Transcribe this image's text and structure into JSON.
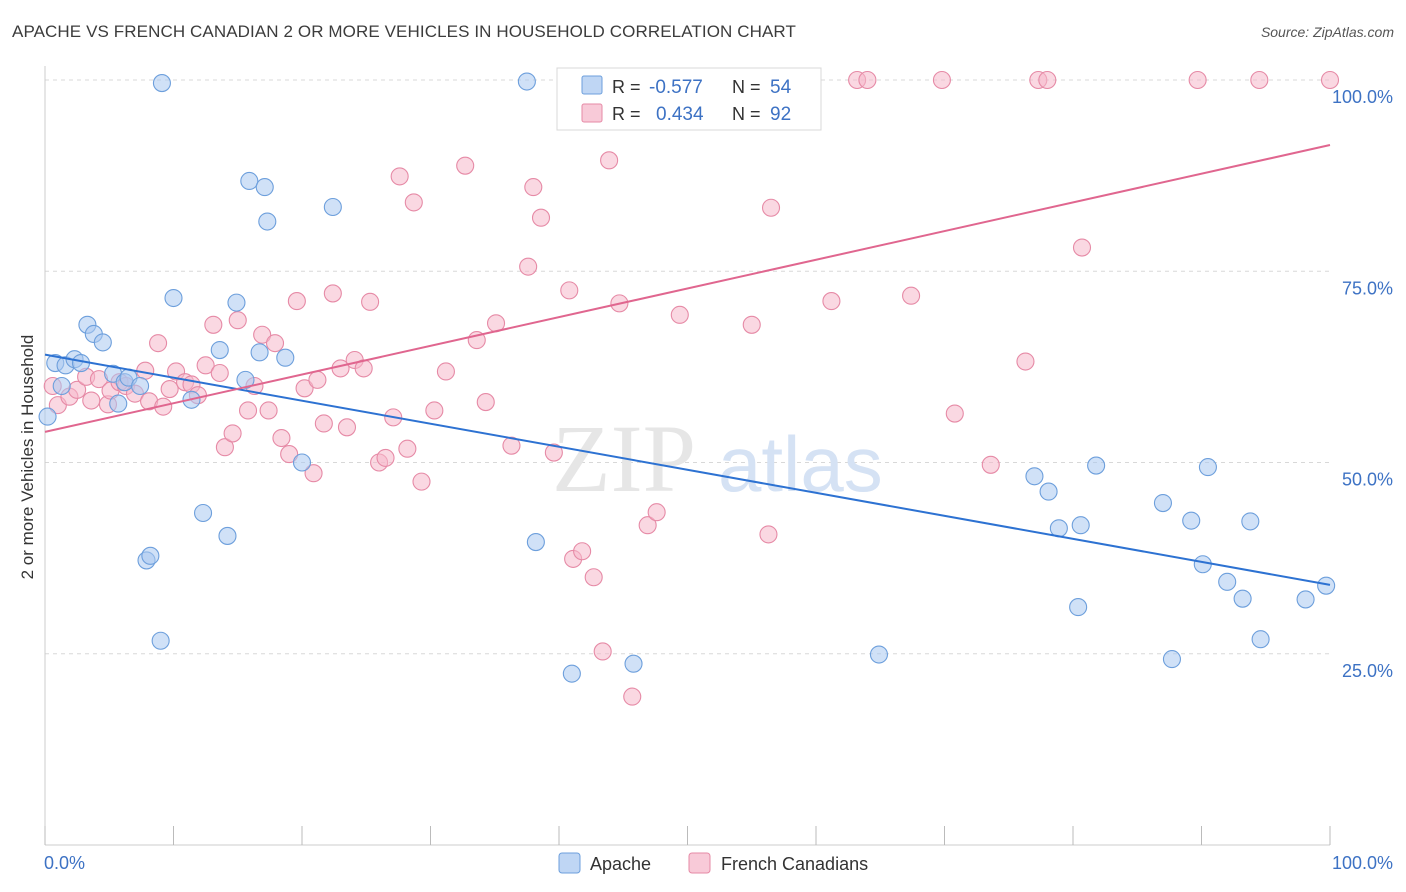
{
  "header": {
    "title": "APACHE VS FRENCH CANADIAN 2 OR MORE VEHICLES IN HOUSEHOLD CORRELATION CHART",
    "source": "Source: ZipAtlas.com"
  },
  "watermark": {
    "zip": "ZIP",
    "atlas": "atlas"
  },
  "legend_box": {
    "rows": [
      {
        "r_label": "R =",
        "r_value": "-0.577",
        "n_label": "N =",
        "n_value": "54",
        "color": "#a9c8f0"
      },
      {
        "r_label": "R =",
        "r_value": "0.434",
        "n_label": "N =",
        "n_value": "92",
        "color": "#f5b8cb"
      }
    ]
  },
  "bottom_legend": [
    {
      "label": "Apache",
      "color": "#a9c8f0"
    },
    {
      "label": "French Canadians",
      "color": "#f5b8cb"
    }
  ],
  "colors": {
    "apache_fill": "#a9c8f0",
    "apache_stroke": "#6d9fdc",
    "apache_line": "#2d72d2",
    "french_fill": "#f5b8cb",
    "french_stroke": "#e68aa6",
    "french_line": "#e0668f",
    "tick_label": "#3d72c4",
    "grid": "#d8d8d8"
  },
  "chart_data": {
    "type": "scatter",
    "title": "APACHE VS FRENCH CANADIAN 2 OR MORE VEHICLES IN HOUSEHOLD CORRELATION CHART",
    "xlabel": "",
    "ylabel": "2 or more Vehicles in Household",
    "xlim": [
      0,
      100
    ],
    "ylim": [
      0,
      100
    ],
    "x_tick_labels": [
      "0.0%",
      "100.0%"
    ],
    "y_ticks": [
      25,
      50,
      75,
      100
    ],
    "y_tick_labels": [
      "25.0%",
      "50.0%",
      "75.0%",
      "100.0%"
    ],
    "grid": true,
    "legend": "top-center",
    "series": [
      {
        "name": "Apache",
        "trend": {
          "x": [
            0,
            100
          ],
          "y": [
            64.1,
            34.0
          ]
        },
        "points": [
          [
            0.2,
            56.0
          ],
          [
            0.8,
            63.0
          ],
          [
            1.3,
            60.0
          ],
          [
            1.6,
            62.7
          ],
          [
            2.3,
            63.5
          ],
          [
            2.8,
            63.0
          ],
          [
            3.3,
            68.0
          ],
          [
            3.8,
            66.8
          ],
          [
            4.5,
            65.7
          ],
          [
            5.3,
            61.6
          ],
          [
            5.7,
            57.7
          ],
          [
            6.2,
            60.5
          ],
          [
            6.5,
            61.1
          ],
          [
            7.4,
            60.0
          ],
          [
            7.9,
            37.2
          ],
          [
            8.2,
            37.8
          ],
          [
            9.0,
            26.7
          ],
          [
            9.1,
            99.6
          ],
          [
            10.0,
            71.5
          ],
          [
            11.4,
            58.2
          ],
          [
            12.3,
            43.4
          ],
          [
            13.6,
            64.7
          ],
          [
            14.2,
            40.4
          ],
          [
            14.9,
            70.9
          ],
          [
            15.6,
            60.8
          ],
          [
            15.9,
            86.8
          ],
          [
            16.7,
            64.4
          ],
          [
            17.1,
            86.0
          ],
          [
            17.3,
            81.5
          ],
          [
            18.7,
            63.7
          ],
          [
            20.0,
            50.0
          ],
          [
            22.4,
            83.4
          ],
          [
            37.5,
            99.8
          ],
          [
            38.2,
            39.6
          ],
          [
            41.0,
            22.4
          ],
          [
            45.8,
            23.7
          ],
          [
            64.9,
            24.9
          ],
          [
            77.0,
            48.2
          ],
          [
            78.1,
            46.2
          ],
          [
            78.9,
            41.4
          ],
          [
            80.4,
            31.1
          ],
          [
            80.6,
            41.8
          ],
          [
            81.8,
            49.6
          ],
          [
            87.0,
            44.7
          ],
          [
            87.7,
            24.3
          ],
          [
            89.2,
            42.4
          ],
          [
            90.1,
            36.7
          ],
          [
            90.5,
            49.4
          ],
          [
            92.0,
            34.4
          ],
          [
            93.2,
            32.2
          ],
          [
            93.8,
            42.3
          ],
          [
            94.6,
            26.9
          ],
          [
            98.1,
            32.1
          ],
          [
            99.7,
            33.9
          ]
        ]
      },
      {
        "name": "French Canadians",
        "trend": {
          "x": [
            0,
            100
          ],
          "y": [
            54.0,
            91.5
          ]
        },
        "points": [
          [
            0.6,
            60.0
          ],
          [
            1.0,
            57.5
          ],
          [
            1.9,
            58.6
          ],
          [
            2.5,
            59.5
          ],
          [
            3.2,
            61.2
          ],
          [
            3.6,
            58.1
          ],
          [
            4.2,
            60.9
          ],
          [
            4.9,
            57.6
          ],
          [
            5.1,
            59.4
          ],
          [
            5.8,
            60.5
          ],
          [
            6.3,
            60.0
          ],
          [
            7.0,
            59.0
          ],
          [
            7.8,
            62.0
          ],
          [
            8.1,
            58.0
          ],
          [
            8.8,
            65.6
          ],
          [
            9.2,
            57.3
          ],
          [
            9.7,
            59.6
          ],
          [
            10.2,
            61.9
          ],
          [
            10.9,
            60.5
          ],
          [
            11.4,
            60.2
          ],
          [
            11.9,
            58.8
          ],
          [
            12.5,
            62.7
          ],
          [
            13.1,
            68.0
          ],
          [
            13.6,
            61.7
          ],
          [
            14.0,
            52.0
          ],
          [
            14.6,
            53.8
          ],
          [
            15.0,
            68.6
          ],
          [
            15.8,
            56.8
          ],
          [
            16.3,
            60.0
          ],
          [
            16.9,
            66.7
          ],
          [
            17.4,
            56.8
          ],
          [
            17.9,
            65.6
          ],
          [
            18.4,
            53.2
          ],
          [
            19.0,
            51.1
          ],
          [
            19.6,
            71.1
          ],
          [
            20.2,
            59.7
          ],
          [
            20.9,
            48.6
          ],
          [
            21.2,
            60.8
          ],
          [
            21.7,
            55.1
          ],
          [
            22.4,
            72.1
          ],
          [
            23.0,
            62.3
          ],
          [
            23.5,
            54.6
          ],
          [
            24.1,
            63.4
          ],
          [
            24.8,
            62.3
          ],
          [
            25.3,
            71.0
          ],
          [
            26.0,
            50.0
          ],
          [
            26.5,
            50.6
          ],
          [
            27.1,
            55.9
          ],
          [
            27.6,
            87.4
          ],
          [
            28.2,
            51.8
          ],
          [
            28.7,
            84.0
          ],
          [
            29.3,
            47.5
          ],
          [
            30.3,
            56.8
          ],
          [
            31.2,
            61.9
          ],
          [
            32.7,
            88.8
          ],
          [
            33.6,
            66.0
          ],
          [
            34.3,
            57.9
          ],
          [
            35.1,
            68.2
          ],
          [
            36.3,
            52.2
          ],
          [
            37.6,
            75.6
          ],
          [
            38.0,
            86.0
          ],
          [
            38.6,
            82.0
          ],
          [
            39.6,
            51.3
          ],
          [
            40.8,
            72.5
          ],
          [
            41.1,
            37.4
          ],
          [
            41.8,
            38.4
          ],
          [
            42.7,
            35.0
          ],
          [
            43.4,
            25.3
          ],
          [
            43.9,
            89.5
          ],
          [
            44.7,
            70.8
          ],
          [
            45.7,
            19.4
          ],
          [
            46.9,
            41.8
          ],
          [
            47.6,
            43.5
          ],
          [
            49.4,
            69.3
          ],
          [
            50.8,
            100.0
          ],
          [
            55.0,
            68.0
          ],
          [
            56.3,
            40.6
          ],
          [
            56.5,
            83.3
          ],
          [
            61.2,
            71.1
          ],
          [
            63.2,
            100.0
          ],
          [
            64.0,
            100.0
          ],
          [
            67.4,
            71.8
          ],
          [
            69.8,
            100.0
          ],
          [
            70.8,
            56.4
          ],
          [
            73.6,
            49.7
          ],
          [
            76.3,
            63.2
          ],
          [
            77.3,
            100.0
          ],
          [
            78.0,
            100.0
          ],
          [
            80.7,
            78.1
          ],
          [
            89.7,
            100.0
          ],
          [
            94.5,
            100.0
          ],
          [
            100.0,
            100.0
          ]
        ]
      }
    ]
  }
}
